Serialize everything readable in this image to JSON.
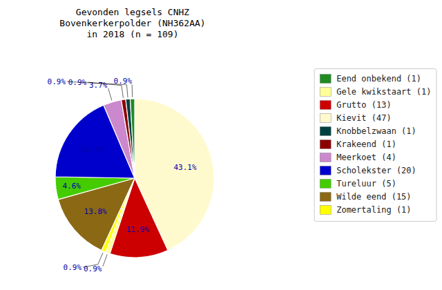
{
  "chart_data": {
    "type": "pie",
    "title": "Gevonden legsels CNHZ\nBovenkerkerpolder (NH362AA)\nin 2018 (n = 109)",
    "categories": [
      "Kievit (47)",
      "Grutto (13)",
      "Gele kwikstaart (1)",
      "Zomertaling (1)",
      "Wilde eend (15)",
      "Tureluur (5)",
      "Scholekster (20)",
      "Meerkoet (4)",
      "Krakeend (1)",
      "Knobbelzwaan (1)",
      "Eend onbekend (1)"
    ],
    "values": [
      43.1,
      11.9,
      0.9,
      0.9,
      13.8,
      4.6,
      18.3,
      3.7,
      0.9,
      0.9,
      0.9
    ],
    "value_labels": [
      "43.1%",
      "11.9%",
      "0.9%",
      "0.9%",
      "13.8%",
      "4.6%",
      "18.3%",
      "3.7%",
      "0.9%",
      "0.9%",
      "0.9%"
    ],
    "colors": [
      "#FFFACD",
      "#CC0000",
      "#FFFF99",
      "#FFFF00",
      "#8B6914",
      "#44CC00",
      "#0000CC",
      "#CC88CC",
      "#8B0000",
      "#004040",
      "#228B22"
    ],
    "data_labels": true,
    "legend": "right"
  }
}
